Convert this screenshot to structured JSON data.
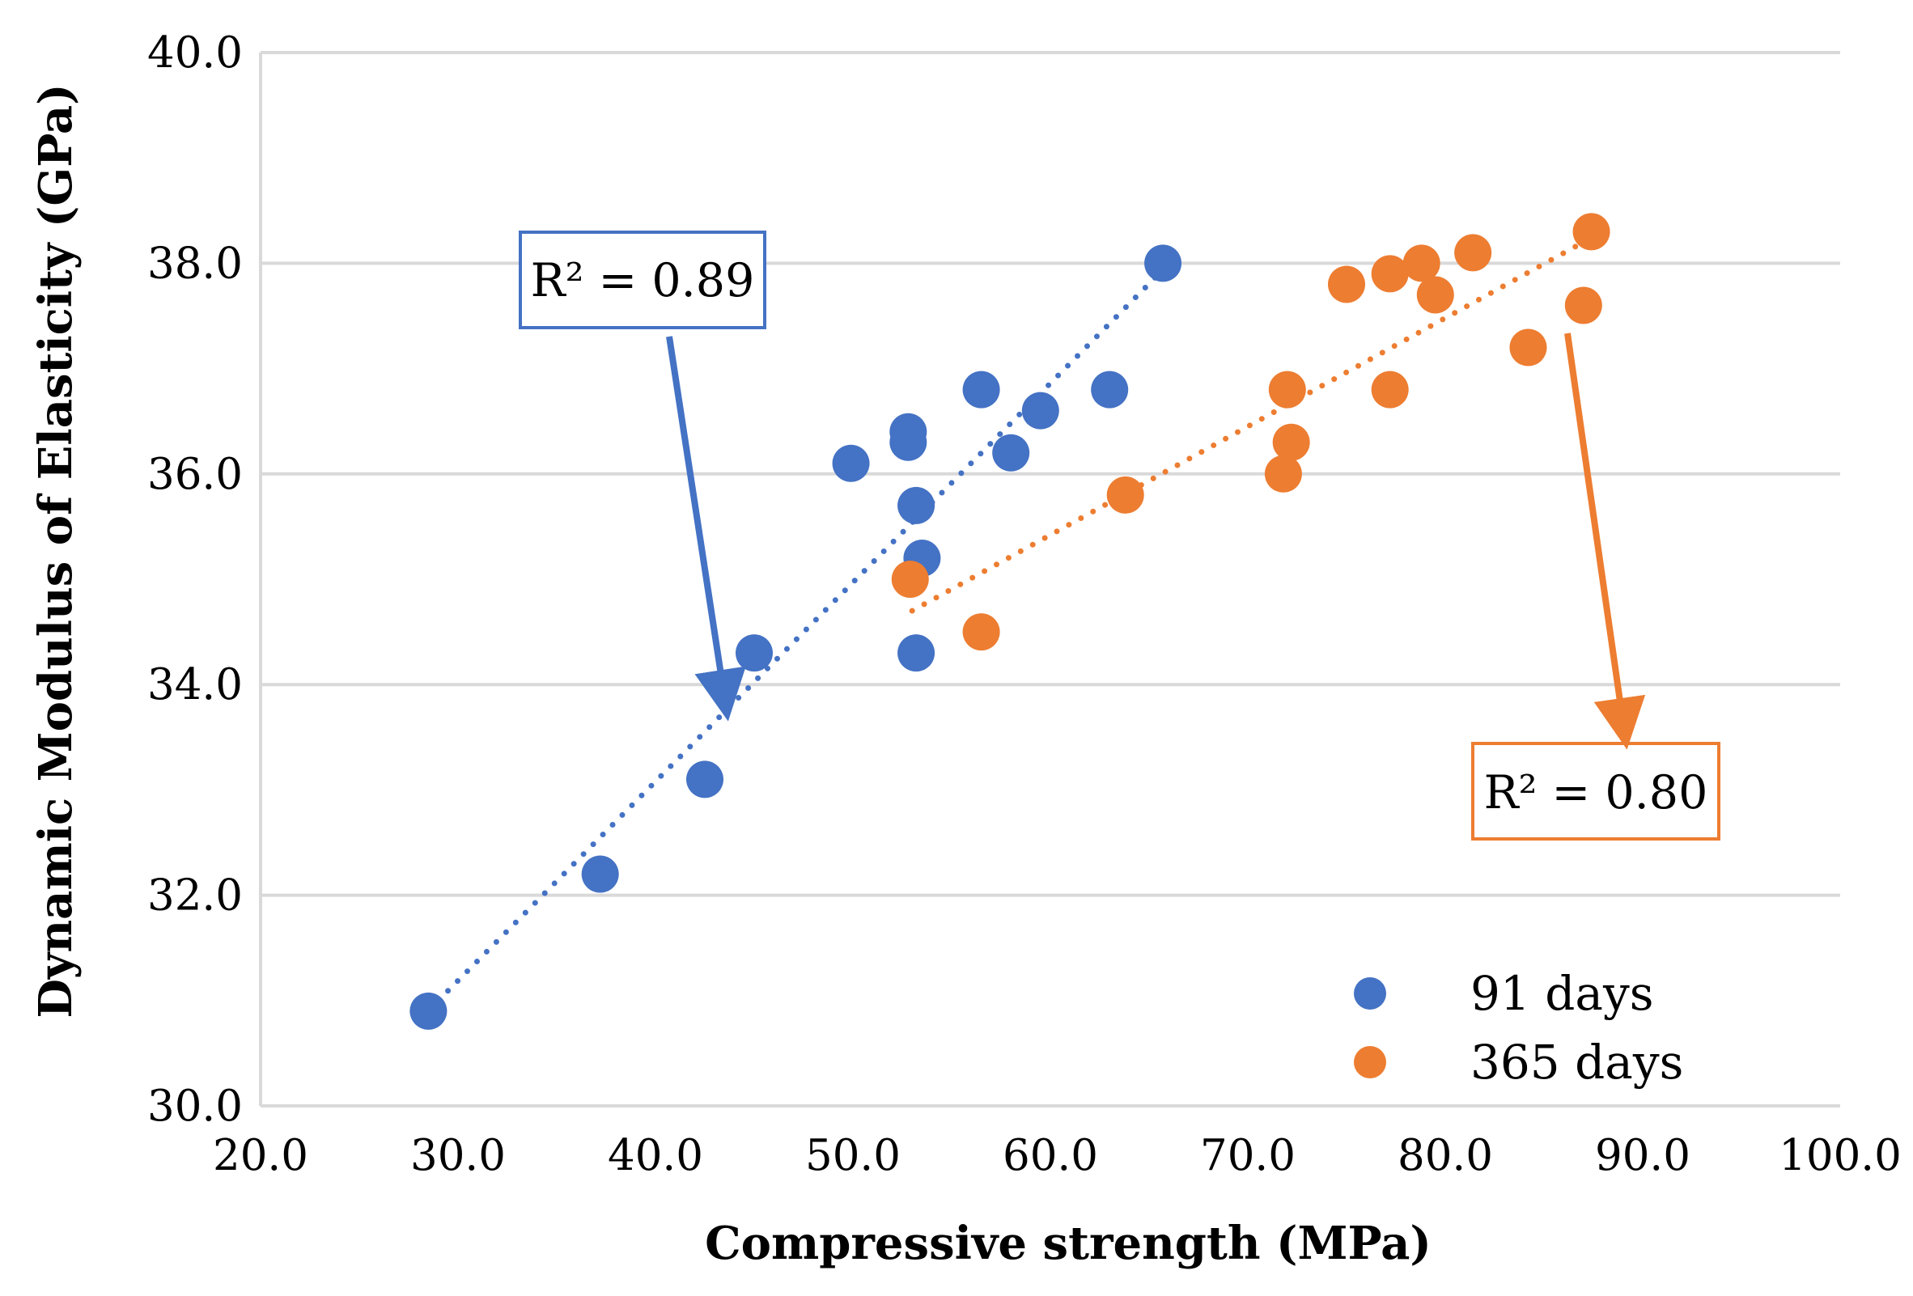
{
  "chart_data": {
    "type": "scatter",
    "xlabel": "Compressive strength (MPa)",
    "ylabel": "Dynamic Modulus of Elasticity (GPa)",
    "xlim": [
      20.0,
      100.0
    ],
    "ylim": [
      30.0,
      40.0
    ],
    "xticks": [
      "20.0",
      "30.0",
      "40.0",
      "50.0",
      "60.0",
      "70.0",
      "80.0",
      "90.0",
      "100.0"
    ],
    "yticks": [
      "30.0",
      "32.0",
      "34.0",
      "36.0",
      "38.0",
      "40.0"
    ],
    "grid": "horizontal",
    "legend_position": "bottom-right",
    "series": [
      {
        "name": "91 days",
        "color": "#4472C4",
        "points": [
          [
            28.5,
            30.9
          ],
          [
            37.2,
            32.2
          ],
          [
            42.5,
            33.1
          ],
          [
            45.0,
            34.3
          ],
          [
            49.9,
            36.1
          ],
          [
            52.8,
            36.4
          ],
          [
            52.8,
            36.3
          ],
          [
            53.2,
            35.7
          ],
          [
            53.5,
            35.2
          ],
          [
            53.2,
            34.3
          ],
          [
            56.5,
            36.8
          ],
          [
            58.0,
            36.2
          ],
          [
            59.5,
            36.6
          ],
          [
            63.0,
            36.8
          ],
          [
            65.7,
            38.0
          ]
        ],
        "trendline": {
          "from": [
            29.0,
            31.0
          ],
          "to": [
            65.5,
            37.9
          ]
        },
        "r2_label": "R² = 0.89"
      },
      {
        "name": "365 days",
        "color": "#ED7D31",
        "points": [
          [
            52.9,
            35.0
          ],
          [
            56.5,
            34.5
          ],
          [
            63.8,
            35.8
          ],
          [
            71.8,
            36.0
          ],
          [
            72.0,
            36.8
          ],
          [
            72.2,
            36.3
          ],
          [
            75.0,
            37.8
          ],
          [
            77.2,
            37.9
          ],
          [
            77.2,
            36.8
          ],
          [
            78.8,
            38.0
          ],
          [
            79.5,
            37.7
          ],
          [
            81.4,
            38.1
          ],
          [
            84.2,
            37.2
          ],
          [
            87.0,
            37.6
          ],
          [
            87.4,
            38.3
          ]
        ],
        "trendline": {
          "from": [
            53.0,
            34.7
          ],
          "to": [
            87.0,
            38.2
          ]
        },
        "r2_label": "R² = 0.80"
      }
    ]
  }
}
